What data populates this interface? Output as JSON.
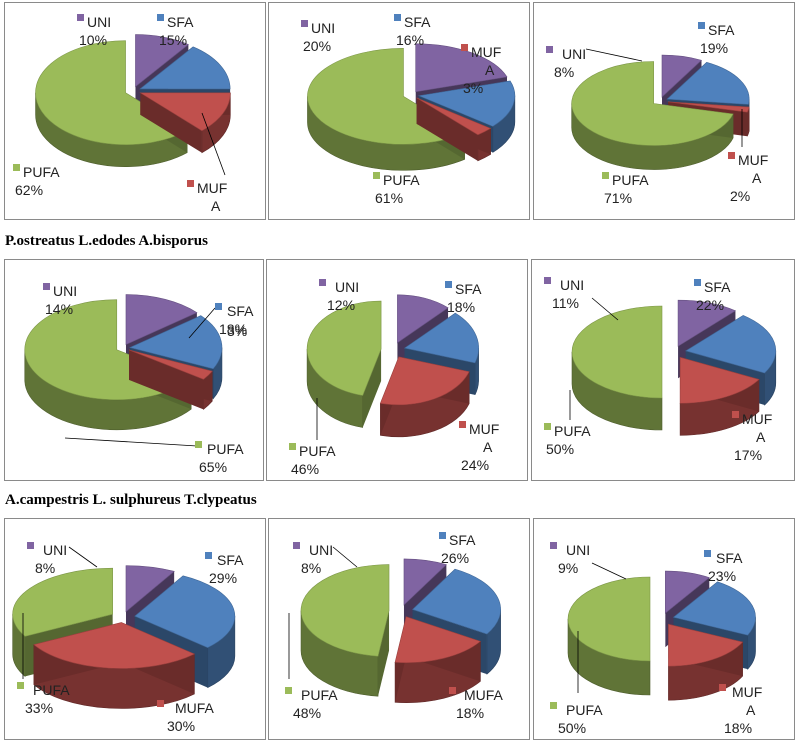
{
  "captions": {
    "row1": "P.ostreatus L.edodes A.bisporus",
    "row2": "A.campestris L. sulphureus T.clypeatus"
  },
  "colors": {
    "UNI": "#8064A2",
    "SFA": "#4F81BD",
    "MUFA": "#C0504D",
    "PUFA": "#9BBB59"
  },
  "chart_data": [
    {
      "type": "pie",
      "slices": [
        {
          "name": "UNI",
          "value": 10,
          "label_name": "UNI",
          "label_value": "10%"
        },
        {
          "name": "SFA",
          "value": 15,
          "label_name": "SFA",
          "label_value": "15%"
        },
        {
          "name": "MUFA",
          "value": 13,
          "label_name": "MUF|A",
          "label_value": "13%"
        },
        {
          "name": "PUFA",
          "value": 62,
          "label_name": "PUFA",
          "label_value": "62%"
        }
      ]
    },
    {
      "type": "pie",
      "slices": [
        {
          "name": "UNI",
          "value": 20,
          "label_name": "UNI",
          "label_value": "20%"
        },
        {
          "name": "SFA",
          "value": 16,
          "label_name": "SFA",
          "label_value": "16%"
        },
        {
          "name": "MUFA",
          "value": 3,
          "label_name": "MUF|A",
          "label_value": "3%"
        },
        {
          "name": "PUFA",
          "value": 61,
          "label_name": "PUFA",
          "label_value": "61%"
        }
      ]
    },
    {
      "type": "pie",
      "slices": [
        {
          "name": "UNI",
          "value": 8,
          "label_name": "UNI",
          "label_value": "8%"
        },
        {
          "name": "SFA",
          "value": 19,
          "label_name": "SFA",
          "label_value": "19%"
        },
        {
          "name": "MUFA",
          "value": 2,
          "label_name": "MUF|A",
          "label_value": "2%"
        },
        {
          "name": "PUFA",
          "value": 71,
          "label_name": "PUFA",
          "label_value": "71%"
        }
      ]
    },
    {
      "type": "pie",
      "slices": [
        {
          "name": "UNI",
          "value": 14,
          "label_name": "UNI",
          "label_value": "14%"
        },
        {
          "name": "SFA",
          "value": 18,
          "label_name": "SFA",
          "label_value": "18%"
        },
        {
          "name": "MUFA",
          "value": 3,
          "label_name": "",
          "label_value": "3%"
        },
        {
          "name": "PUFA",
          "value": 65,
          "label_name": "PUFA",
          "label_value": "65%"
        }
      ]
    },
    {
      "type": "pie",
      "slices": [
        {
          "name": "UNI",
          "value": 12,
          "label_name": "UNI",
          "label_value": "12%"
        },
        {
          "name": "SFA",
          "value": 18,
          "label_name": "SFA",
          "label_value": "18%"
        },
        {
          "name": "MUFA",
          "value": 24,
          "label_name": "MUF|A",
          "label_value": "24%"
        },
        {
          "name": "PUFA",
          "value": 46,
          "label_name": "PUFA",
          "label_value": "46%"
        }
      ]
    },
    {
      "type": "pie",
      "slices": [
        {
          "name": "UNI",
          "value": 11,
          "label_name": "UNI",
          "label_value": "11%"
        },
        {
          "name": "SFA",
          "value": 22,
          "label_name": "SFA",
          "label_value": "22%"
        },
        {
          "name": "MUFA",
          "value": 17,
          "label_name": "MUF|A",
          "label_value": "17%"
        },
        {
          "name": "PUFA",
          "value": 50,
          "label_name": "PUFA",
          "label_value": "50%"
        }
      ]
    },
    {
      "type": "pie",
      "slices": [
        {
          "name": "UNI",
          "value": 8,
          "label_name": "UNI",
          "label_value": "8%"
        },
        {
          "name": "SFA",
          "value": 29,
          "label_name": "SFA",
          "label_value": "29%"
        },
        {
          "name": "MUFA",
          "value": 30,
          "label_name": "MUFA",
          "label_value": "30%"
        },
        {
          "name": "PUFA",
          "value": 33,
          "label_name": "PUFA",
          "label_value": "33%"
        }
      ]
    },
    {
      "type": "pie",
      "slices": [
        {
          "name": "UNI",
          "value": 8,
          "label_name": "UNI",
          "label_value": "8%"
        },
        {
          "name": "SFA",
          "value": 26,
          "label_name": "SFA",
          "label_value": "26%"
        },
        {
          "name": "MUFA",
          "value": 18,
          "label_name": "MUFA",
          "label_value": "18%"
        },
        {
          "name": "PUFA",
          "value": 48,
          "label_name": "PUFA",
          "label_value": "48%"
        }
      ]
    },
    {
      "type": "pie",
      "slices": [
        {
          "name": "UNI",
          "value": 9,
          "label_name": "UNI",
          "label_value": "9%"
        },
        {
          "name": "SFA",
          "value": 23,
          "label_name": "SFA",
          "label_value": "23%"
        },
        {
          "name": "MUFA",
          "value": 18,
          "label_name": "MUF|A",
          "label_value": "18%"
        },
        {
          "name": "PUFA",
          "value": 50,
          "label_name": "PUFA",
          "label_value": "50%"
        }
      ]
    }
  ]
}
